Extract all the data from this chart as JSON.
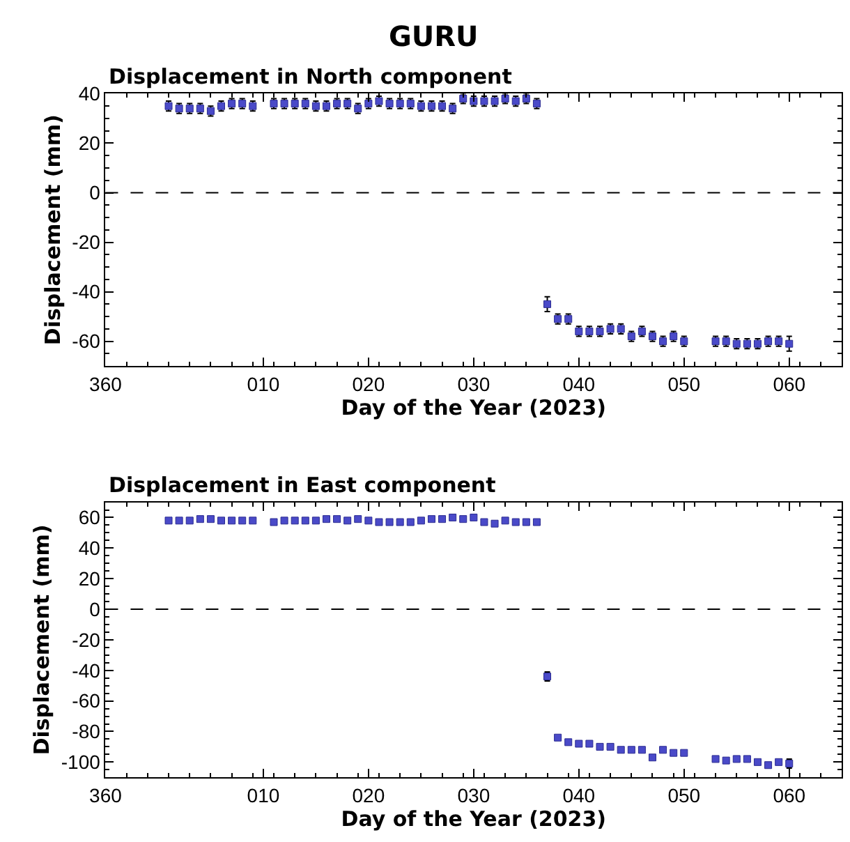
{
  "chart_data": [
    {
      "type": "scatter",
      "title": "GURU",
      "subtitle": "Displacement in North component",
      "xlabel": "Day of the Year (2023)",
      "ylabel": "Displacement (mm)",
      "x": [
        "2023-01-01",
        "2023-01-02",
        "2023-01-03",
        "2023-01-04",
        "2023-01-05",
        "2023-01-06",
        "2023-01-07",
        "2023-01-08",
        "2023-01-09",
        "2023-01-11",
        "2023-01-12",
        "2023-01-13",
        "2023-01-14",
        "2023-01-15",
        "2023-01-16",
        "2023-01-17",
        "2023-01-18",
        "2023-01-19",
        "2023-01-20",
        "2023-01-21",
        "2023-01-22",
        "2023-01-23",
        "2023-01-24",
        "2023-01-25",
        "2023-01-26",
        "2023-01-27",
        "2023-01-28",
        "2023-01-29",
        "2023-01-30",
        "2023-01-31",
        "2023-02-01",
        "2023-02-02",
        "2023-02-03",
        "2023-02-04",
        "2023-02-05",
        "2023-02-06",
        "2023-02-07",
        "2023-02-08",
        "2023-02-09",
        "2023-02-10",
        "2023-02-11",
        "2023-02-12",
        "2023-02-13",
        "2023-02-14",
        "2023-02-15",
        "2023-02-16",
        "2023-02-17",
        "2023-02-18",
        "2023-02-19",
        "2023-02-22",
        "2023-02-23",
        "2023-02-24",
        "2023-02-25",
        "2023-02-26",
        "2023-02-27",
        "2023-02-28",
        "2023-03-01"
      ],
      "series": [
        {
          "color": "#4a4ac8",
          "values": [
            35,
            34,
            34,
            34,
            33,
            35,
            36,
            36,
            35,
            36,
            36,
            36,
            36,
            35,
            35,
            36,
            36,
            34,
            36,
            37,
            36,
            36,
            36,
            35,
            35,
            35,
            34,
            38,
            37,
            37,
            37,
            38,
            37,
            38,
            36,
            -45,
            -51,
            -51,
            -56,
            -56,
            -56,
            -55,
            -55,
            -58,
            -56,
            -58,
            -60,
            -58,
            -60,
            -60,
            -60,
            -61,
            -61,
            -61,
            -60,
            -60,
            -61
          ],
          "errors": [
            2,
            2,
            2,
            2,
            2,
            2,
            2,
            2,
            2,
            2,
            2,
            2,
            2,
            2,
            2,
            2,
            2,
            2,
            2,
            2,
            2,
            2,
            2,
            2,
            2,
            2,
            2,
            2,
            2,
            2,
            2,
            2,
            2,
            2,
            2,
            3,
            2,
            2,
            2,
            2,
            2,
            2,
            2,
            2,
            2,
            2,
            2,
            2,
            2,
            2,
            2,
            2,
            2,
            2,
            2,
            2,
            3
          ]
        }
      ],
      "xlim": [
        "2022-12-26",
        "2023-03-06"
      ],
      "xticks": [
        {
          "value": "2022-12-26",
          "label": "360"
        },
        {
          "value": "2023-01-10",
          "label": "010"
        },
        {
          "value": "2023-01-20",
          "label": "020"
        },
        {
          "value": "2023-01-30",
          "label": "030"
        },
        {
          "value": "2023-02-09",
          "label": "040"
        },
        {
          "value": "2023-02-19",
          "label": "050"
        },
        {
          "value": "2023-03-01",
          "label": "060"
        }
      ],
      "ylim": [
        -70,
        40
      ],
      "yticks": [
        -60,
        -40,
        -20,
        0,
        20,
        40
      ],
      "ref_lines": [
        {
          "axis": "y",
          "value": 0,
          "color": "#000000",
          "line_style": "dashed"
        }
      ],
      "marker": "square"
    },
    {
      "type": "scatter",
      "subtitle": "Displacement in East component",
      "xlabel": "Day of the Year (2023)",
      "ylabel": "Displacement (mm)",
      "x": [
        "2023-01-01",
        "2023-01-02",
        "2023-01-03",
        "2023-01-04",
        "2023-01-05",
        "2023-01-06",
        "2023-01-07",
        "2023-01-08",
        "2023-01-09",
        "2023-01-11",
        "2023-01-12",
        "2023-01-13",
        "2023-01-14",
        "2023-01-15",
        "2023-01-16",
        "2023-01-17",
        "2023-01-18",
        "2023-01-19",
        "2023-01-20",
        "2023-01-21",
        "2023-01-22",
        "2023-01-23",
        "2023-01-24",
        "2023-01-25",
        "2023-01-26",
        "2023-01-27",
        "2023-01-28",
        "2023-01-29",
        "2023-01-30",
        "2023-01-31",
        "2023-02-01",
        "2023-02-02",
        "2023-02-03",
        "2023-02-04",
        "2023-02-05",
        "2023-02-06",
        "2023-02-07",
        "2023-02-08",
        "2023-02-09",
        "2023-02-10",
        "2023-02-11",
        "2023-02-12",
        "2023-02-13",
        "2023-02-14",
        "2023-02-15",
        "2023-02-16",
        "2023-02-17",
        "2023-02-18",
        "2023-02-19",
        "2023-02-22",
        "2023-02-23",
        "2023-02-24",
        "2023-02-25",
        "2023-02-26",
        "2023-02-27",
        "2023-02-28",
        "2023-03-01"
      ],
      "series": [
        {
          "color": "#4a4ac8",
          "values": [
            58,
            58,
            58,
            59,
            59,
            58,
            58,
            58,
            58,
            57,
            58,
            58,
            58,
            58,
            59,
            59,
            58,
            59,
            58,
            57,
            57,
            57,
            57,
            58,
            59,
            59,
            60,
            59,
            60,
            57,
            56,
            58,
            57,
            57,
            57,
            -44,
            -84,
            -87,
            -88,
            -88,
            -90,
            -90,
            -92,
            -92,
            -92,
            -97,
            -92,
            -94,
            -94,
            -98,
            -99,
            -98,
            -98,
            -100,
            -102,
            -100,
            -101
          ],
          "errors": [
            null,
            null,
            null,
            null,
            null,
            null,
            null,
            null,
            null,
            null,
            null,
            null,
            null,
            null,
            null,
            null,
            null,
            null,
            null,
            null,
            null,
            null,
            null,
            null,
            null,
            null,
            null,
            null,
            null,
            null,
            null,
            null,
            null,
            null,
            null,
            3,
            null,
            null,
            null,
            null,
            null,
            null,
            null,
            null,
            null,
            null,
            null,
            null,
            null,
            null,
            null,
            null,
            null,
            null,
            null,
            null,
            3
          ]
        }
      ],
      "xlim": [
        "2022-12-26",
        "2023-03-06"
      ],
      "xticks": [
        {
          "value": "2022-12-26",
          "label": "360"
        },
        {
          "value": "2023-01-10",
          "label": "010"
        },
        {
          "value": "2023-01-20",
          "label": "020"
        },
        {
          "value": "2023-01-30",
          "label": "030"
        },
        {
          "value": "2023-02-09",
          "label": "040"
        },
        {
          "value": "2023-02-19",
          "label": "050"
        },
        {
          "value": "2023-03-01",
          "label": "060"
        }
      ],
      "ylim": [
        -110,
        70
      ],
      "yticks": [
        -100,
        -80,
        -60,
        -40,
        -20,
        0,
        20,
        40,
        60
      ],
      "ref_lines": [
        {
          "axis": "y",
          "value": 0,
          "color": "#000000",
          "line_style": "dashed"
        }
      ],
      "marker": "square"
    }
  ]
}
